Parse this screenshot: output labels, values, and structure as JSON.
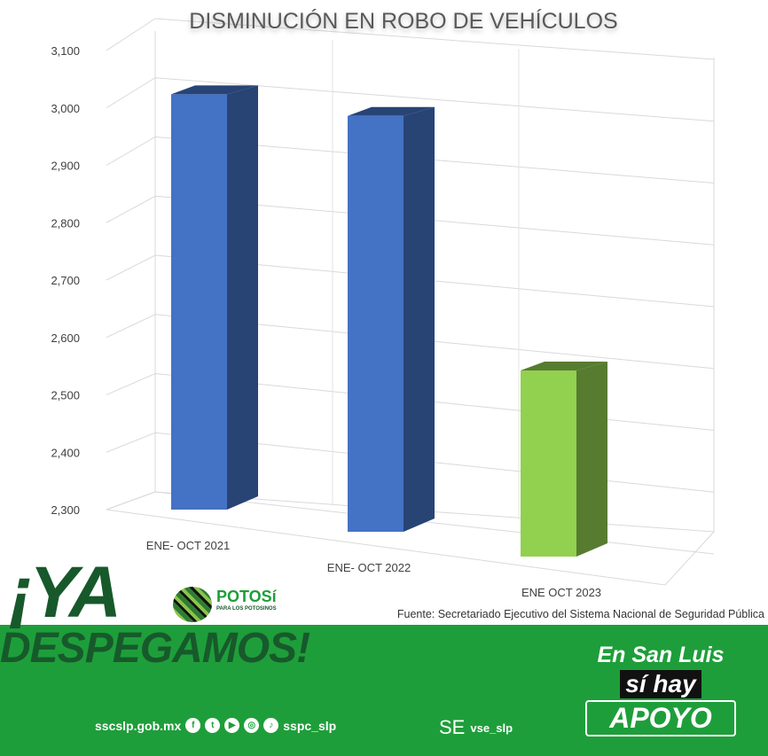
{
  "chart_data": {
    "type": "bar",
    "title": "DISMINUCIÓN EN ROBO DE VEHÍCULOS",
    "categories": [
      "ENE- OCT 2021",
      "ENE- OCT 2022",
      "ENE OCT 2023"
    ],
    "values": [
      3010,
      2980,
      2580
    ],
    "colors": [
      "#4472c4",
      "#4472c4",
      "#92d050"
    ],
    "ylim": [
      2300,
      3100
    ],
    "yticks": [
      "2,300",
      "2,400",
      "2,500",
      "2,600",
      "2,700",
      "2,800",
      "2,900",
      "3,000",
      "3,100"
    ],
    "grid": true,
    "style": "3d-column"
  },
  "source": "Fuente: Secretariado Ejecutivo del Sistema Nacional de Seguridad Pública",
  "banner": {
    "headline_1": "¡YA",
    "headline_2": "DESPEGAMOS!",
    "logo_name": "POTOSí",
    "logo_sub": "PARA LOS POTOSINOS",
    "website": "sscslp.gob.mx",
    "social_icons": [
      "facebook-icon",
      "twitter-icon",
      "youtube-icon",
      "instagram-icon",
      "tiktok-icon"
    ],
    "social_handle": "sspc_slp",
    "se_logo": "SE",
    "se_handle": "vse_slp",
    "slogan_1": "En San Luis",
    "slogan_2": "sí hay",
    "slogan_3": "APOYO"
  }
}
